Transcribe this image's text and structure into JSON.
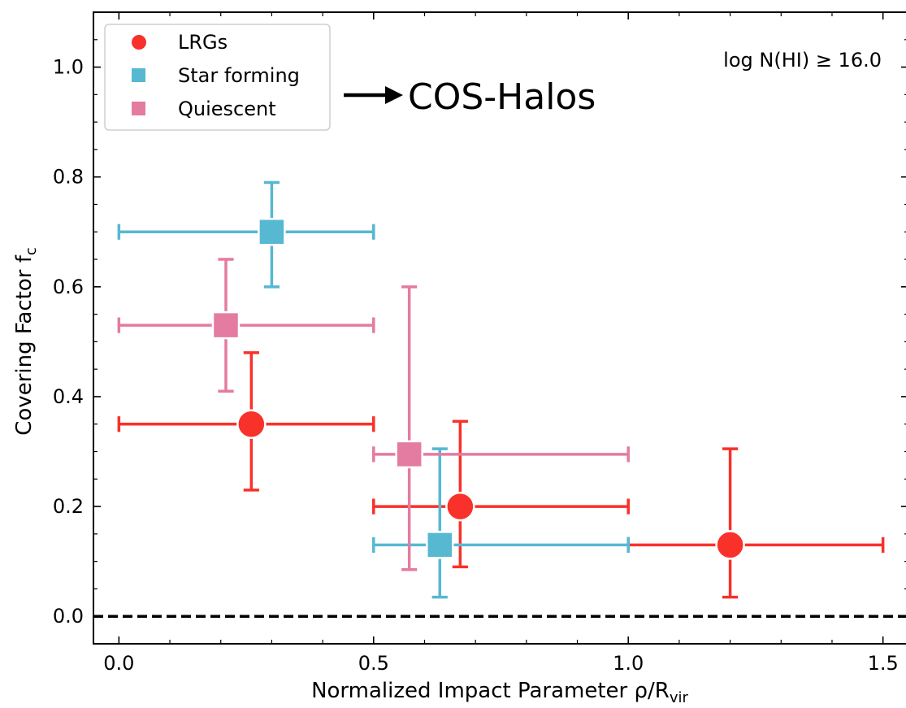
{
  "chart_data": {
    "type": "scatter",
    "title": "",
    "xlabel": "Normalized Impact Parameter ρ/R",
    "xlabel_sub": "vir",
    "ylabel": "Covering Factor f",
    "ylabel_sub": "c",
    "xlim": [
      -0.05,
      1.55
    ],
    "ylim": [
      -0.05,
      1.1
    ],
    "xticks": [
      {
        "value": 0.0,
        "label": "0.0"
      },
      {
        "value": 0.5,
        "label": "0.5"
      },
      {
        "value": 1.0,
        "label": "1.0"
      },
      {
        "value": 1.5,
        "label": "1.5"
      }
    ],
    "yticks": [
      {
        "value": 0.0,
        "label": "0.0"
      },
      {
        "value": 0.2,
        "label": "0.2"
      },
      {
        "value": 0.4,
        "label": "0.4"
      },
      {
        "value": 0.6,
        "label": "0.6"
      },
      {
        "value": 0.8,
        "label": "0.8"
      },
      {
        "value": 1.0,
        "label": "1.0"
      }
    ],
    "grid": false,
    "legend_position": "top-left",
    "reference_line": {
      "y": 0.0,
      "style": "dashed",
      "color": "#000000"
    },
    "series": [
      {
        "name": "LRGs",
        "marker": "circle",
        "color": "#f8312a",
        "points": [
          {
            "x": 0.26,
            "y": 0.35,
            "xlo": 0.0,
            "xhi": 0.5,
            "ylo": 0.23,
            "yhi": 0.48
          },
          {
            "x": 0.67,
            "y": 0.2,
            "xlo": 0.5,
            "xhi": 1.0,
            "ylo": 0.09,
            "yhi": 0.355
          },
          {
            "x": 1.2,
            "y": 0.13,
            "xlo": 1.0,
            "xhi": 1.5,
            "ylo": 0.035,
            "yhi": 0.305
          }
        ]
      },
      {
        "name": "Star forming",
        "marker": "square",
        "color": "#56b8d1",
        "points": [
          {
            "x": 0.3,
            "y": 0.7,
            "xlo": 0.0,
            "xhi": 0.5,
            "ylo": 0.6,
            "yhi": 0.79
          },
          {
            "x": 0.63,
            "y": 0.13,
            "xlo": 0.5,
            "xhi": 1.0,
            "ylo": 0.035,
            "yhi": 0.305
          }
        ]
      },
      {
        "name": "Quiescent",
        "marker": "square",
        "color": "#e47ba0",
        "points": [
          {
            "x": 0.21,
            "y": 0.53,
            "xlo": 0.0,
            "xhi": 0.5,
            "ylo": 0.41,
            "yhi": 0.65
          },
          {
            "x": 0.57,
            "y": 0.295,
            "xlo": 0.5,
            "xhi": 1.0,
            "ylo": 0.085,
            "yhi": 0.6
          }
        ]
      }
    ],
    "annotations": {
      "threshold": "log N(HI) ≥ 16.0",
      "survey": "COS-Halos"
    }
  }
}
